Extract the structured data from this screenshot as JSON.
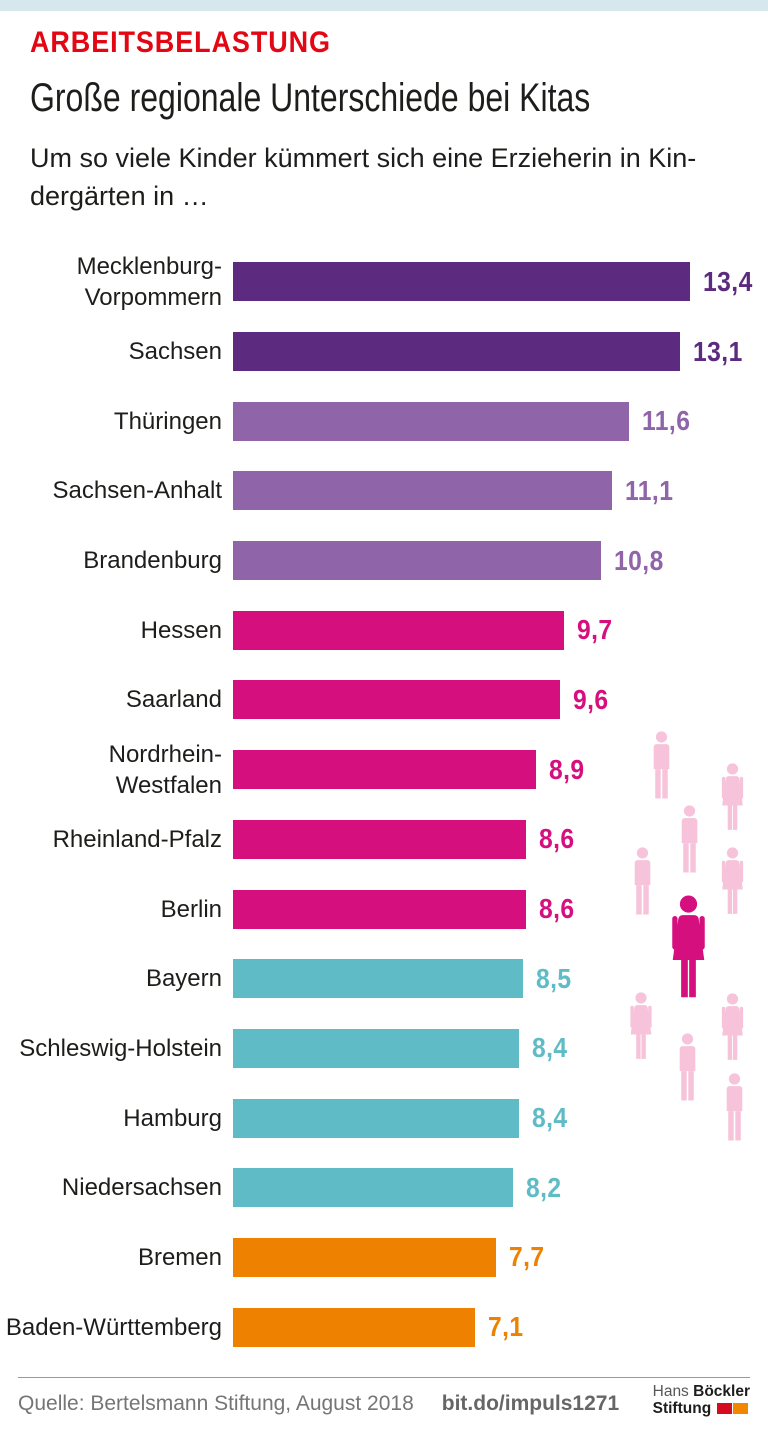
{
  "palette": {
    "top_strip": "#d6e8ed",
    "accent_red": "#e30613",
    "dark_purple": "#5c2b80",
    "mid_purple": "#8f64a9",
    "magenta": "#d60f7f",
    "teal": "#5fbcc6",
    "orange": "#ee8200",
    "light_pink": "#f6c3da",
    "text_black": "#1d1d1b",
    "footer_gray": "#757575"
  },
  "header": {
    "kicker": "ARBEITSBELASTUNG",
    "title": "Große regionale Unterschiede bei Kitas",
    "subtitle": "Um so viele Kinder kümmert sich eine Erzieherin in Kin-\ndergärten in …"
  },
  "chart_data": {
    "type": "bar",
    "orientation": "horizontal",
    "grid": false,
    "xlim": [
      0,
      14
    ],
    "value_label_position": "right-of-bar",
    "title": "Große regionale Unterschiede bei Kitas",
    "categories": [
      "Mecklenburg-\nVorpommern",
      "Sachsen",
      "Thüringen",
      "Sachsen-Anhalt",
      "Brandenburg",
      "Hessen",
      "Saarland",
      "Nordrhein-\nWestfalen",
      "Rheinland-Pfalz",
      "Berlin",
      "Bayern",
      "Schleswig-Holstein",
      "Hamburg",
      "Niedersachsen",
      "Bremen",
      "Baden-Württemberg"
    ],
    "values": [
      13.4,
      13.1,
      11.6,
      11.1,
      10.8,
      9.7,
      9.6,
      8.9,
      8.6,
      8.6,
      8.5,
      8.4,
      8.4,
      8.2,
      7.7,
      7.1
    ],
    "value_labels": [
      "13,4",
      "13,1",
      "11,6",
      "11,1",
      "10,8",
      "9,7",
      "9,6",
      "8,9",
      "8,6",
      "8,6",
      "8,5",
      "8,4",
      "8,4",
      "8,2",
      "7,7",
      "7,1"
    ],
    "colors": [
      "#5c2b80",
      "#5c2b80",
      "#8f64a9",
      "#8f64a9",
      "#8f64a9",
      "#d60f7f",
      "#d60f7f",
      "#d60f7f",
      "#d60f7f",
      "#d60f7f",
      "#5fbcc6",
      "#5fbcc6",
      "#5fbcc6",
      "#5fbcc6",
      "#ee8200",
      "#ee8200"
    ]
  },
  "people_graphic": {
    "small_pink_figures": 9,
    "large_magenta_figures": 1
  },
  "footer": {
    "source": "Quelle: Bertelsmann Stiftung, August 2018",
    "link": "bit.do/impuls1271",
    "logo": {
      "name_regular": "Hans",
      "name_bold": "Böckler",
      "line2": "Stiftung"
    }
  }
}
